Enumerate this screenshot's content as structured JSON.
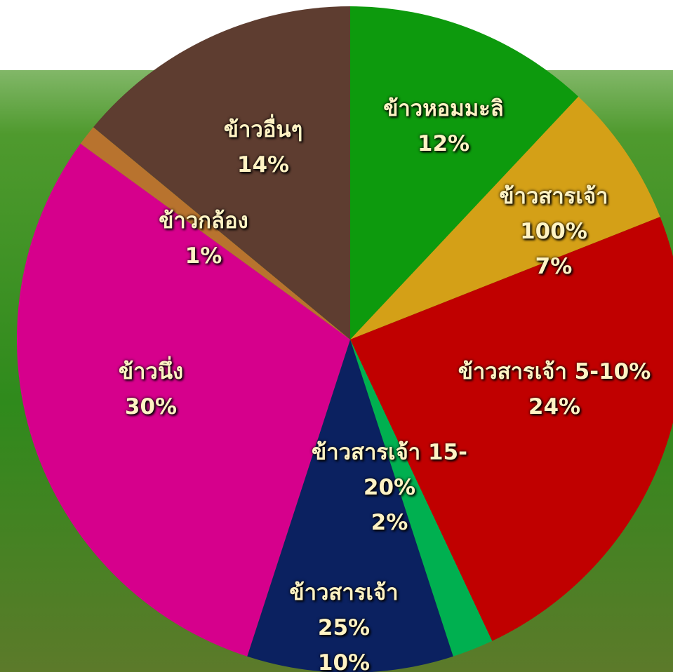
{
  "chart_data": {
    "type": "pie",
    "categories": [
      "ข้าวหอมมะลิ",
      "ข้าวสารเจ้า 100%",
      "ข้าวสารเจ้า 5-10%",
      "ข้าวสารเจ้า 15-20%",
      "ข้าวสารเจ้า 25%",
      "ข้าวนึ่ง",
      "ข้าวกล้อง",
      "ข้าวอื่นๆ"
    ],
    "values": [
      12,
      7,
      24,
      2,
      10,
      30,
      1,
      14
    ],
    "value_labels": [
      "12%",
      "7%",
      "24%",
      "2%",
      "10%",
      "30%",
      "1%",
      "14%"
    ],
    "colors": [
      "#0d9a0d",
      "#d4a017",
      "#c00000",
      "#00b050",
      "#0b2160",
      "#d6008c",
      "#b8732e",
      "#5e3d30"
    ]
  }
}
